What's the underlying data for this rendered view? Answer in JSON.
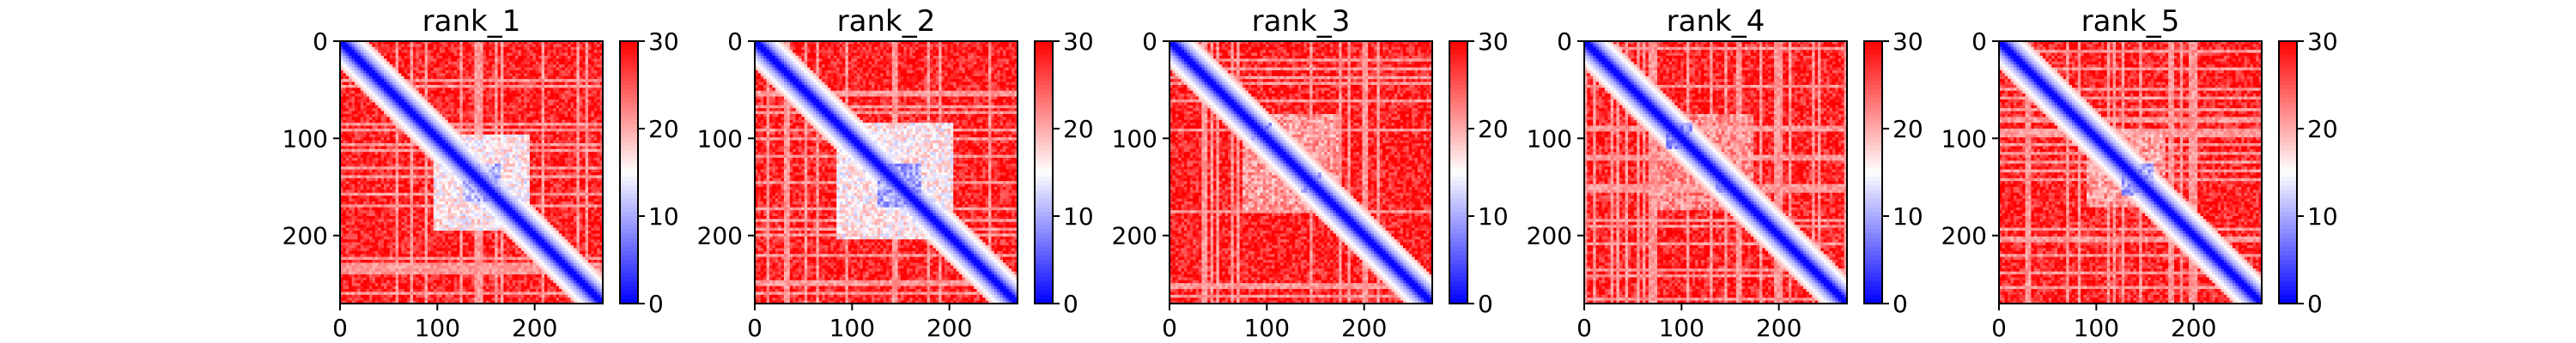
{
  "figure": {
    "colormap": {
      "name": "bwr",
      "low": "#0000ff",
      "mid": "#ffffff",
      "high": "#ff0000"
    }
  },
  "chart_data": [
    {
      "type": "heatmap",
      "title": "rank_1",
      "xlim": [
        0,
        270
      ],
      "ylim": [
        270,
        0
      ],
      "xticks": [
        0,
        100,
        200
      ],
      "yticks": [
        0,
        100,
        200
      ],
      "colorbar": {
        "range": [
          0,
          30
        ],
        "ticks": [
          0,
          10,
          20,
          30
        ]
      },
      "low_value_blocks": [
        {
          "x": [
            95,
            195
          ],
          "y": [
            95,
            195
          ],
          "value": 12
        },
        {
          "x": [
            125,
            165
          ],
          "y": [
            125,
            165
          ],
          "value": 7
        }
      ]
    },
    {
      "type": "heatmap",
      "title": "rank_2",
      "xlim": [
        0,
        270
      ],
      "ylim": [
        270,
        0
      ],
      "xticks": [
        0,
        100,
        200
      ],
      "yticks": [
        0,
        100,
        200
      ],
      "colorbar": {
        "range": [
          0,
          30
        ],
        "ticks": [
          0,
          10,
          20,
          30
        ]
      },
      "low_value_blocks": [
        {
          "x": [
            85,
            205
          ],
          "y": [
            85,
            205
          ],
          "value": 12
        },
        {
          "x": [
            125,
            170
          ],
          "y": [
            125,
            170
          ],
          "value": 6
        }
      ]
    },
    {
      "type": "heatmap",
      "title": "rank_3",
      "xlim": [
        0,
        270
      ],
      "ylim": [
        270,
        0
      ],
      "xticks": [
        0,
        100,
        200
      ],
      "yticks": [
        0,
        100,
        200
      ],
      "colorbar": {
        "range": [
          0,
          30
        ],
        "ticks": [
          0,
          10,
          20,
          30
        ]
      },
      "low_value_blocks": [
        {
          "x": [
            75,
            175
          ],
          "y": [
            75,
            175
          ],
          "value": 17
        },
        {
          "x": [
            85,
            105
          ],
          "y": [
            85,
            105
          ],
          "value": 6
        },
        {
          "x": [
            135,
            155
          ],
          "y": [
            135,
            155
          ],
          "value": 7
        }
      ]
    },
    {
      "type": "heatmap",
      "title": "rank_4",
      "xlim": [
        0,
        270
      ],
      "ylim": [
        270,
        0
      ],
      "xticks": [
        0,
        100,
        200
      ],
      "yticks": [
        0,
        100,
        200
      ],
      "colorbar": {
        "range": [
          0,
          30
        ],
        "ticks": [
          0,
          10,
          20,
          30
        ]
      },
      "low_value_blocks": [
        {
          "x": [
            75,
            175
          ],
          "y": [
            75,
            175
          ],
          "value": 18
        },
        {
          "x": [
            85,
            110
          ],
          "y": [
            85,
            110
          ],
          "value": 5
        },
        {
          "x": [
            135,
            155
          ],
          "y": [
            135,
            155
          ],
          "value": 7
        }
      ]
    },
    {
      "type": "heatmap",
      "title": "rank_5",
      "xlim": [
        0,
        270
      ],
      "ylim": [
        270,
        0
      ],
      "xticks": [
        0,
        100,
        200
      ],
      "yticks": [
        0,
        100,
        200
      ],
      "colorbar": {
        "range": [
          0,
          30
        ],
        "ticks": [
          0,
          10,
          20,
          30
        ]
      },
      "low_value_blocks": [
        {
          "x": [
            90,
            170
          ],
          "y": [
            90,
            170
          ],
          "value": 17
        },
        {
          "x": [
            125,
            160
          ],
          "y": [
            125,
            160
          ],
          "value": 6
        }
      ]
    }
  ]
}
